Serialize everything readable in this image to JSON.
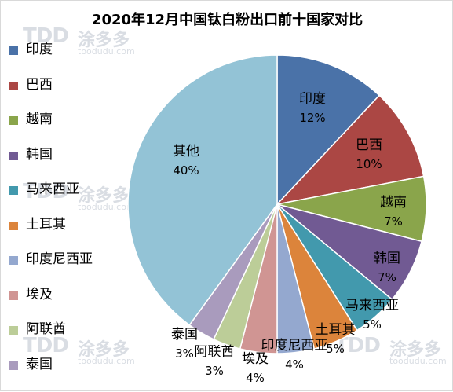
{
  "watermark": {
    "logo": "TDD",
    "name": "涂多多",
    "url": "toodudu.com"
  },
  "chart_data": {
    "type": "pie",
    "title": "2020年12月中国钛白粉出口前十国家对比",
    "legend_position": "left",
    "slices": [
      {
        "name": "印度",
        "value": 12,
        "label": "12%",
        "color": "#4a72a8"
      },
      {
        "name": "巴西",
        "value": 10,
        "label": "10%",
        "color": "#ab4744"
      },
      {
        "name": "越南",
        "value": 7,
        "label": "7%",
        "color": "#8aa54b"
      },
      {
        "name": "韩国",
        "value": 7,
        "label": "7%",
        "color": "#715a93"
      },
      {
        "name": "马来西亚",
        "value": 5,
        "label": "5%",
        "color": "#4299ad"
      },
      {
        "name": "土耳其",
        "value": 5,
        "label": "5%",
        "color": "#dc843b"
      },
      {
        "name": "印度尼西亚",
        "value": 4,
        "label": "4%",
        "color": "#94a8cf"
      },
      {
        "name": "埃及",
        "value": 4,
        "label": "4%",
        "color": "#d09593"
      },
      {
        "name": "阿联酋",
        "value": 3,
        "label": "3%",
        "color": "#bccd98"
      },
      {
        "name": "泰国",
        "value": 3,
        "label": "3%",
        "color": "#a99bbd"
      },
      {
        "name": "其他",
        "value": 40,
        "label": "40%",
        "color": "#93c3d6"
      }
    ],
    "legend": [
      {
        "name": "印度",
        "color": "#4a72a8"
      },
      {
        "name": "巴西",
        "color": "#ab4744"
      },
      {
        "name": "越南",
        "color": "#8aa54b"
      },
      {
        "name": "韩国",
        "color": "#715a93"
      },
      {
        "name": "马来西亚",
        "color": "#4299ad"
      },
      {
        "name": "土耳其",
        "color": "#dc843b"
      },
      {
        "name": "印度尼西亚",
        "color": "#94a8cf"
      },
      {
        "name": "埃及",
        "color": "#d09593"
      },
      {
        "name": "阿联酋",
        "color": "#bccd98"
      },
      {
        "name": "泰国",
        "color": "#a99bbd"
      }
    ]
  }
}
